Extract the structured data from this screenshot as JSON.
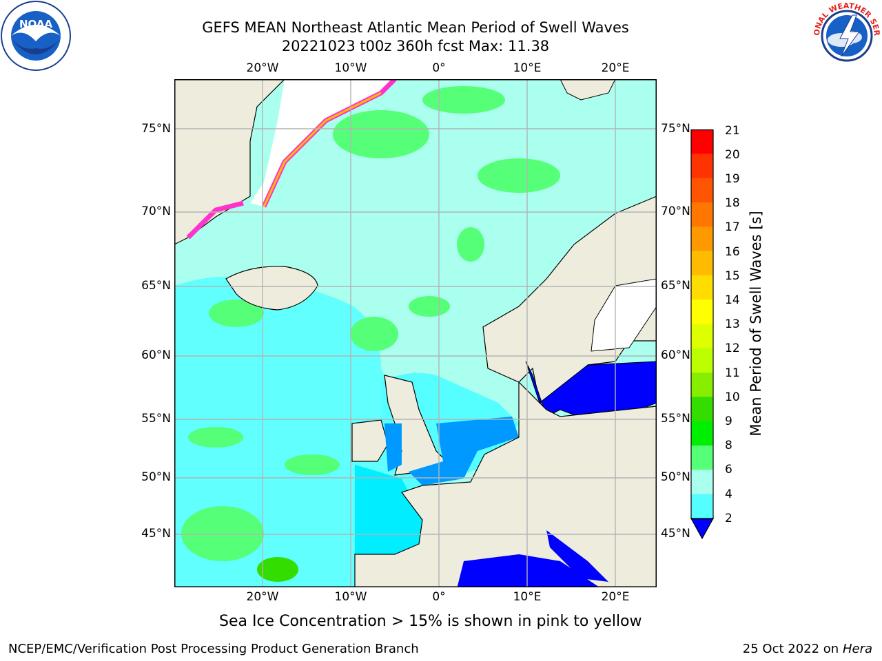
{
  "header": {
    "title_line1": "GEFS MEAN Northeast Atlantic Mean Period of Swell Waves",
    "title_line2": "20221023 t00z 360h fcst   Max: 11.38"
  },
  "map": {
    "lat_labels": [
      "75°N",
      "70°N",
      "65°N",
      "60°N",
      "55°N",
      "50°N",
      "45°N"
    ],
    "lon_labels": [
      "20°W",
      "10°W",
      "0°",
      "10°E",
      "20°E"
    ]
  },
  "colorbar": {
    "title": "Mean Period of Swell Waves [s]",
    "ticks": [
      "21",
      "20",
      "19",
      "18",
      "17",
      "16",
      "15",
      "14",
      "13",
      "12",
      "11",
      "10",
      "9",
      "8",
      "6",
      "4",
      "2"
    ],
    "colors": [
      "#ff0000",
      "#ff3300",
      "#ff5500",
      "#ff7700",
      "#ff9900",
      "#ffbb00",
      "#ffdd00",
      "#ffff00",
      "#ddff00",
      "#bbff00",
      "#88ee00",
      "#33dd00",
      "#00ee00",
      "#55ff77",
      "#aaffee",
      "#55ffff",
      "#00eeff",
      "#0077ff",
      "#0000ff"
    ],
    "ocean_colors": {
      "ice": "#ff33cc",
      "land": "#eeeddd",
      "low": "#0011ee",
      "mid": "#0099ff"
    }
  },
  "footer": {
    "note": "Sea Ice Concentration > 15% is shown in pink to yellow",
    "left": "NCEP/EMC/Verification Post Processing Product Generation Branch",
    "right_date": "25 Oct 2022 on ",
    "right_machine": "Hera"
  },
  "logos": {
    "noaa_text": "NOAA",
    "nws_text": "NATIONAL WEATHER SERVICE"
  }
}
